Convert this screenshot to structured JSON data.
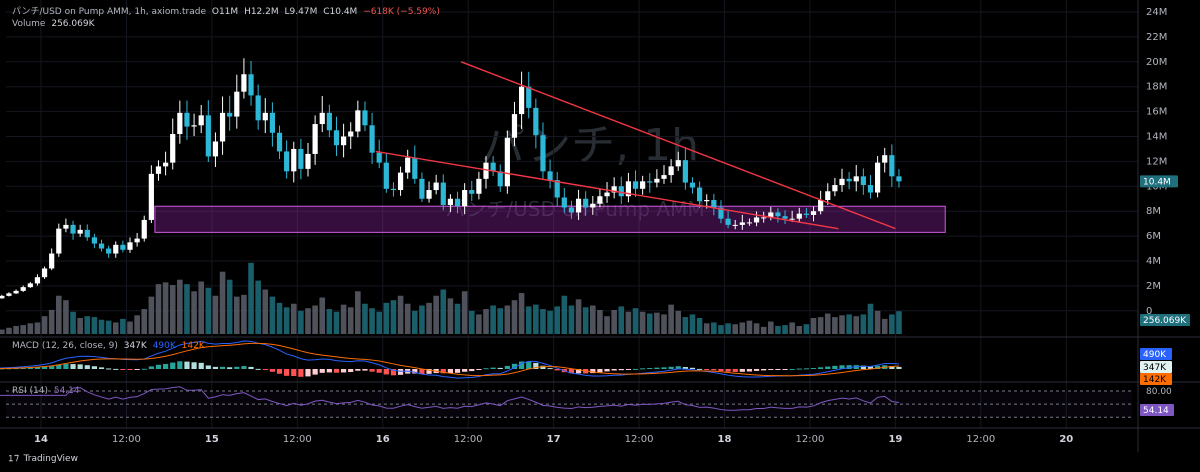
{
  "header": {
    "symbol": "パンチ/USD on Pump AMM, 1h, axiom.trade",
    "o": "O11M",
    "h": "H12.2M",
    "l": "L9.47M",
    "c": "C10.4M",
    "change": "−618K (−5.59%)",
    "volume_label": "Volume",
    "volume_value": "256.069K"
  },
  "watermark": {
    "big": "パンチ, 1h",
    "small": "パンチ/USD on Pump AMM"
  },
  "macd_legend": {
    "label": "MACD (12, 26, close, 9)",
    "v1": "347K",
    "v2": "490K",
    "v3": "142K"
  },
  "rsi_legend": {
    "label": "RSI (14)",
    "v1": "54.14"
  },
  "branding": "TradingView",
  "colors": {
    "up": "#26a69a",
    "down": "#ef5350",
    "candle_up": "#ffffff",
    "candle_down": "#2eb8d8",
    "trendline": "#f23645",
    "zone": "#9c27b0",
    "macd": "#2962ff",
    "signal": "#ff6d00",
    "rsi": "#7e57c2"
  },
  "chart_data": {
    "type": "candlestick",
    "price_axis": {
      "ticks": [
        "24M",
        "22M",
        "20M",
        "18M",
        "16M",
        "14M",
        "12M",
        "10M",
        "8M",
        "6M",
        "4M",
        "2M",
        "0"
      ],
      "range": [
        0,
        24000000
      ]
    },
    "last_price_label": "10.4M",
    "volume_label": "256.069K",
    "macd_badges": [
      "490K",
      "347K",
      "142K"
    ],
    "rsi_axis": {
      "ticks": [
        "80.00"
      ],
      "range": [
        0,
        100
      ],
      "upper": 80,
      "lower": 20
    },
    "rsi_badge": "54.14",
    "time_axis": [
      {
        "label": "14",
        "hour": 14
      },
      {
        "label": "12:00",
        "hour": 26
      },
      {
        "label": "15",
        "hour": 38
      },
      {
        "label": "12:00",
        "hour": 50
      },
      {
        "label": "16",
        "hour": 62
      },
      {
        "label": "12:00",
        "hour": 74
      },
      {
        "label": "17",
        "hour": 86
      },
      {
        "label": "12:00",
        "hour": 98
      },
      {
        "label": "18",
        "hour": 110
      },
      {
        "label": "12:00",
        "hour": 122
      },
      {
        "label": "19",
        "hour": 134
      },
      {
        "label": "12:00",
        "hour": 146
      },
      {
        "label": "20",
        "hour": 158
      }
    ],
    "closes": [
      0.5,
      0.6,
      0.7,
      0.8,
      0.9,
      1.0,
      1.2,
      1.4,
      1.6,
      1.9,
      2.2,
      2.7,
      3.4,
      4.6,
      6.6,
      6.9,
      6.2,
      6.5,
      5.9,
      5.4,
      5.0,
      4.6,
      5.3,
      4.9,
      5.5,
      5.8,
      7.3,
      11.0,
      11.6,
      11.9,
      14.2,
      15.9,
      14.8,
      14.9,
      15.7,
      12.4,
      13.6,
      15.9,
      15.6,
      17.6,
      19.0,
      17.3,
      15.3,
      15.9,
      14.3,
      12.8,
      11.2,
      13.0,
      11.4,
      12.6,
      15.0,
      15.9,
      14.5,
      13.3,
      14.0,
      14.4,
      16.1,
      14.9,
      12.7,
      11.9,
      9.8,
      9.7,
      11.1,
      12.3,
      10.6,
      9.0,
      9.7,
      10.3,
      8.5,
      9.0,
      8.4,
      9.7,
      9.4,
      10.6,
      11.9,
      11.2,
      10.0,
      13.9,
      15.8,
      18.0,
      16.3,
      14.1,
      11.2,
      10.5,
      9.1,
      8.3,
      7.9,
      9.0,
      8.3,
      8.6,
      9.2,
      9.5,
      10.0,
      9.2,
      10.4,
      9.8,
      10.4,
      10.3,
      10.6,
      10.9,
      11.6,
      12.1,
      10.3,
      9.9,
      8.8,
      8.9,
      8.3,
      7.4,
      6.9,
      6.9,
      7.1,
      7.1,
      7.5,
      7.5,
      7.9,
      7.6,
      7.4,
      7.4,
      7.8,
      7.7,
      8.0,
      8.9,
      9.6,
      10.1,
      10.6,
      10.4,
      10.8,
      10.1,
      9.5,
      11.9,
      12.5,
      10.8,
      10.4
    ],
    "volumes": [
      30,
      30,
      40,
      40,
      50,
      60,
      50,
      70,
      90,
      100,
      120,
      130,
      200,
      270,
      430,
      380,
      250,
      180,
      200,
      190,
      160,
      150,
      130,
      170,
      140,
      210,
      280,
      420,
      560,
      580,
      550,
      610,
      560,
      480,
      590,
      520,
      430,
      700,
      610,
      420,
      440,
      800,
      600,
      500,
      420,
      350,
      300,
      340,
      260,
      290,
      320,
      410,
      280,
      250,
      330,
      300,
      480,
      340,
      290,
      250,
      350,
      380,
      430,
      340,
      260,
      320,
      350,
      430,
      500,
      400,
      340,
      480,
      260,
      220,
      280,
      320,
      290,
      320,
      380,
      460,
      310,
      330,
      280,
      260,
      310,
      430,
      320,
      390,
      300,
      320,
      270,
      200,
      270,
      310,
      250,
      290,
      250,
      230,
      240,
      220,
      330,
      260,
      190,
      220,
      180,
      120,
      130,
      100,
      120,
      110,
      130,
      150,
      120,
      80,
      140,
      90,
      100,
      130,
      90,
      110,
      180,
      190,
      230,
      190,
      210,
      220,
      200,
      220,
      340,
      260,
      170,
      220,
      256
    ],
    "zone": {
      "from_hour": 30,
      "to_hour": 141,
      "low": 6300000,
      "high": 8400000
    },
    "trendlines": [
      {
        "from_hour": 73,
        "from_price": 20000000,
        "to_hour": 134,
        "to_price": 6600000
      },
      {
        "from_hour": 61,
        "from_price": 12800000,
        "to_hour": 126,
        "to_price": 6600000
      }
    ]
  }
}
